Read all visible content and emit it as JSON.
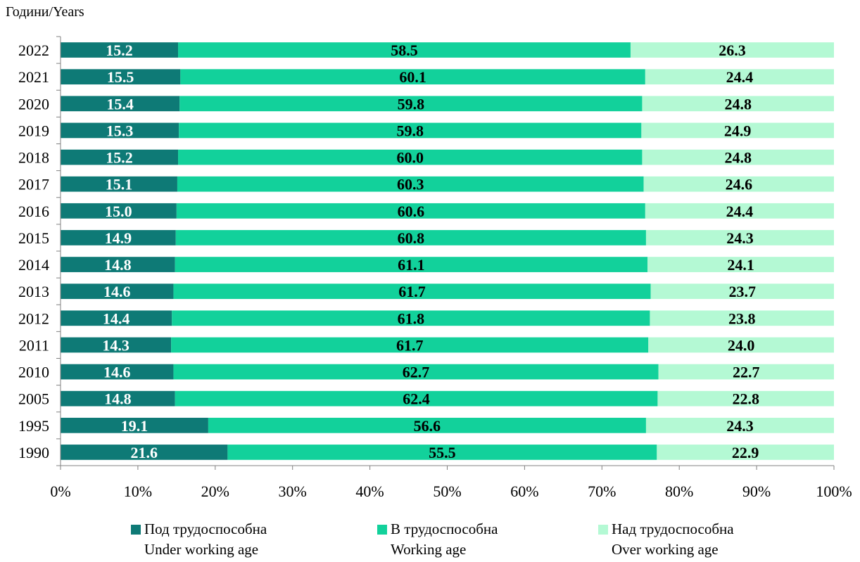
{
  "chart_data": {
    "type": "bar",
    "orientation": "horizontal",
    "stacked": "percent",
    "y_title": "Години/Years",
    "categories": [
      "2022",
      "2021",
      "2020",
      "2019",
      "2018",
      "2017",
      "2016",
      "2015",
      "2014",
      "2013",
      "2012",
      "2011",
      "2010",
      "2005",
      "1995",
      "1990"
    ],
    "series": [
      {
        "name": "Под трудоспособна",
        "name_en": "Under working age",
        "color": "#0e7a76",
        "label_color": "#ffffff",
        "values": [
          15.2,
          15.5,
          15.4,
          15.3,
          15.2,
          15.1,
          15.0,
          14.9,
          14.8,
          14.6,
          14.4,
          14.3,
          14.6,
          14.8,
          19.1,
          21.6
        ],
        "labels": [
          "15.2",
          "15.5",
          "15.4",
          "15.3",
          "15.2",
          "15.1",
          "15.0",
          "14.9",
          "14.8",
          "14.6",
          "14.4",
          "14.3",
          "14.6",
          "14.8",
          "19.1",
          "21.6"
        ]
      },
      {
        "name": "В трудоспособна",
        "name_en": "Working age",
        "color": "#12d19b",
        "label_color": "#000000",
        "values": [
          58.5,
          60.1,
          59.8,
          59.8,
          60.0,
          60.3,
          60.6,
          60.8,
          61.1,
          61.7,
          61.8,
          61.7,
          62.7,
          62.4,
          56.6,
          55.5
        ],
        "labels": [
          "58.5",
          "60.1",
          "59.8",
          "59.8",
          "60.0",
          "60.3",
          "60.6",
          "60.8",
          "61.1",
          "61.7",
          "61.8",
          "61.7",
          "62.7",
          "62.4",
          "56.6",
          "55.5"
        ]
      },
      {
        "name": "Над трудоспособна",
        "name_en": "Over working age",
        "color": "#b4f9d4",
        "label_color": "#000000",
        "values": [
          26.3,
          24.4,
          24.8,
          24.9,
          24.8,
          24.6,
          24.4,
          24.3,
          24.1,
          23.7,
          23.8,
          24.0,
          22.7,
          22.8,
          24.3,
          22.9
        ],
        "labels": [
          "26.3",
          "24.4",
          "24.8",
          "24.9",
          "24.8",
          "24.6",
          "24.4",
          "24.3",
          "24.1",
          "23.7",
          "23.8",
          "24.0",
          "22.7",
          "22.8",
          "24.3",
          "22.9"
        ]
      }
    ],
    "xlim": [
      0,
      100
    ],
    "xticks": [
      "0%",
      "10%",
      "20%",
      "30%",
      "40%",
      "50%",
      "60%",
      "70%",
      "80%",
      "90%",
      "100%"
    ],
    "grid": false,
    "legend_position": "bottom"
  }
}
